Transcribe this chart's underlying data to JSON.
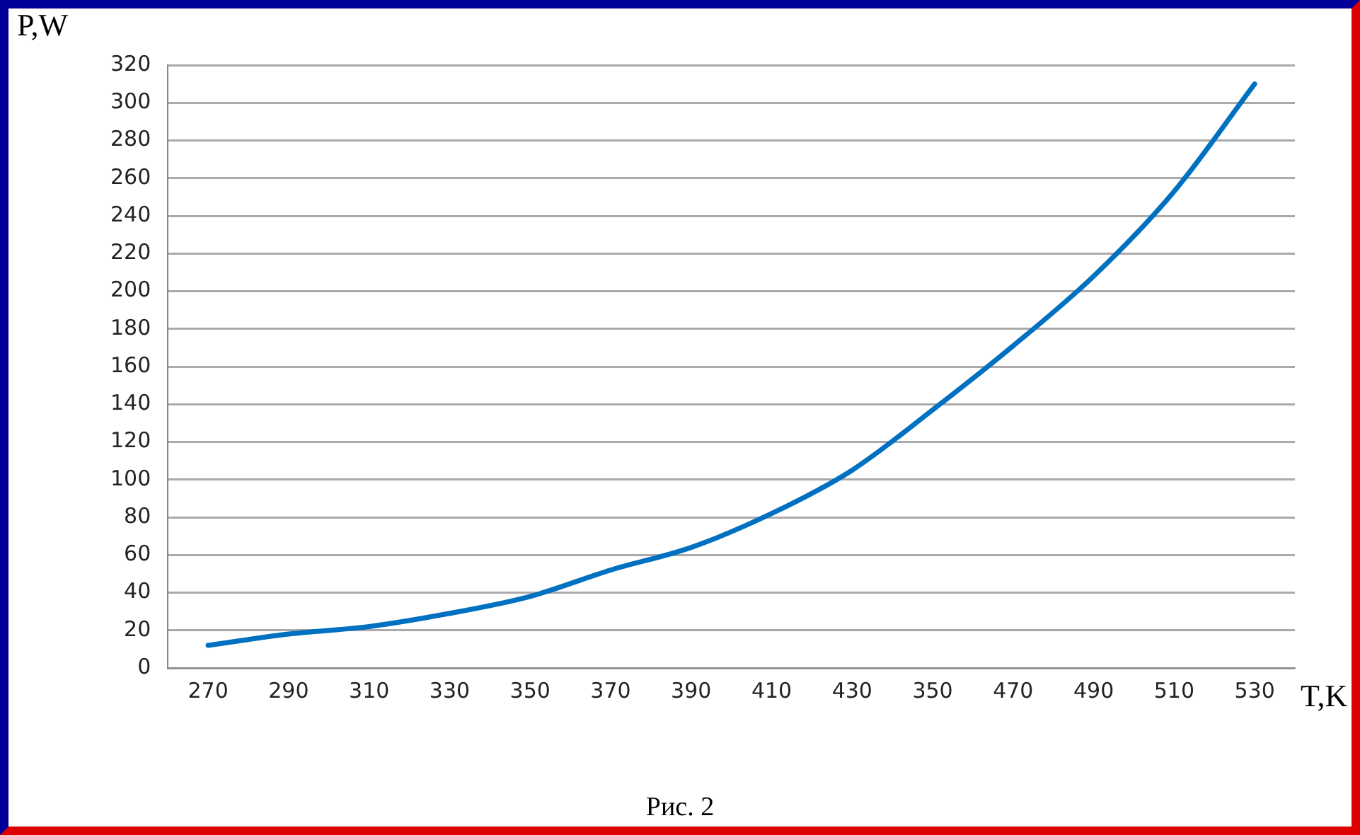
{
  "chart_data": {
    "type": "line",
    "xlabel": "T,K",
    "ylabel": "P,W",
    "annotations": [
      "Рис. 2"
    ],
    "categories": [
      "270",
      "290",
      "310",
      "330",
      "350",
      "370",
      "390",
      "410",
      "430",
      "350",
      "470",
      "490",
      "510",
      "530"
    ],
    "series": [
      {
        "color": "#0070c0",
        "values": [
          12,
          18,
          22,
          29,
          38,
          52,
          64,
          82,
          105,
          137,
          171,
          208,
          253,
          310
        ]
      }
    ],
    "ylim": [
      0,
      320
    ],
    "yticks": [
      0,
      20,
      40,
      60,
      80,
      100,
      120,
      140,
      160,
      180,
      200,
      220,
      240,
      260,
      280,
      300,
      320
    ],
    "grid": "y",
    "legend": false,
    "marker": "none",
    "line_style": "solid"
  }
}
